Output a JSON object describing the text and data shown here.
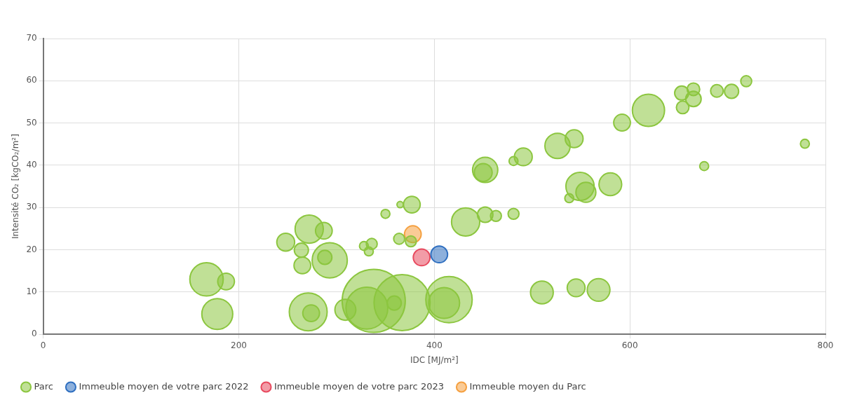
{
  "chart_data": {
    "type": "bubble",
    "xlabel": "IDC [MJ/m²]",
    "ylabel": "Intensité CO₂ [kgCO₂/m²]",
    "xlim": [
      0,
      800
    ],
    "xticks": [
      0,
      200,
      400,
      600,
      800
    ],
    "ylim": [
      0,
      70
    ],
    "yticks": [
      0,
      10,
      20,
      30,
      40,
      50,
      60,
      70
    ],
    "grid": true,
    "legend": "bottom",
    "series": [
      {
        "name": "Parc",
        "color": "#8cc63f",
        "x": [
          167,
          187,
          178,
          271,
          274,
          309,
          338,
          331,
          367,
          359,
          415,
          410,
          248,
          264,
          272,
          287,
          265,
          293,
          288,
          328,
          336,
          333,
          350,
          365,
          377,
          364,
          376,
          432,
          452,
          463,
          481,
          452,
          450,
          481,
          491,
          526,
          543,
          549,
          555,
          538,
          580,
          592,
          619,
          653,
          665,
          665,
          654,
          689,
          704,
          719,
          779,
          676,
          510,
          545,
          568
        ],
        "values": [
          13,
          12.5,
          4.8,
          5.3,
          5,
          5.8,
          7.9,
          6.2,
          7.5,
          7.4,
          8.2,
          7.4,
          21.8,
          19.9,
          24.9,
          24.5,
          16.3,
          17.5,
          18.2,
          20.9,
          21.4,
          19.6,
          28.5,
          30.7,
          30.7,
          22.6,
          22,
          26.6,
          28.3,
          28,
          28.5,
          38.9,
          38.3,
          41,
          42,
          44.6,
          46.3,
          35,
          33.6,
          32.2,
          35.5,
          50.1,
          53,
          57.1,
          58,
          55.7,
          53.7,
          57.6,
          57.5,
          59.9,
          45.1,
          39.8,
          9.9,
          11,
          10.5
        ],
        "sizes": [
          0.28,
          0.07,
          0.24,
          0.36,
          0.07,
          0.11,
          1,
          0.44,
          0.79,
          0.05,
          0.54,
          0.24,
          0.08,
          0.05,
          0.2,
          0.07,
          0.07,
          0.31,
          0.05,
          0.02,
          0.03,
          0.02,
          0.02,
          0.01,
          0.07,
          0.03,
          0.03,
          0.2,
          0.06,
          0.03,
          0.03,
          0.16,
          0.08,
          0.02,
          0.08,
          0.16,
          0.08,
          0.2,
          0.1,
          0.02,
          0.13,
          0.07,
          0.26,
          0.05,
          0.04,
          0.06,
          0.04,
          0.04,
          0.05,
          0.03,
          0.02,
          0.02,
          0.13,
          0.08,
          0.13
        ]
      },
      {
        "name": "Immeuble moyen de votre parc 2022",
        "color": "#2f6fc0",
        "x": [
          405
        ],
        "values": [
          18.9
        ],
        "sizes": [
          0.07
        ]
      },
      {
        "name": "Immeuble moyen de votre parc 2023",
        "color": "#e84a5f",
        "x": [
          387
        ],
        "values": [
          18.2
        ],
        "sizes": [
          0.07
        ]
      },
      {
        "name": "Immeuble moyen du Parc",
        "color": "#f5a040",
        "x": [
          378
        ],
        "values": [
          23.7
        ],
        "sizes": [
          0.07
        ]
      }
    ]
  }
}
